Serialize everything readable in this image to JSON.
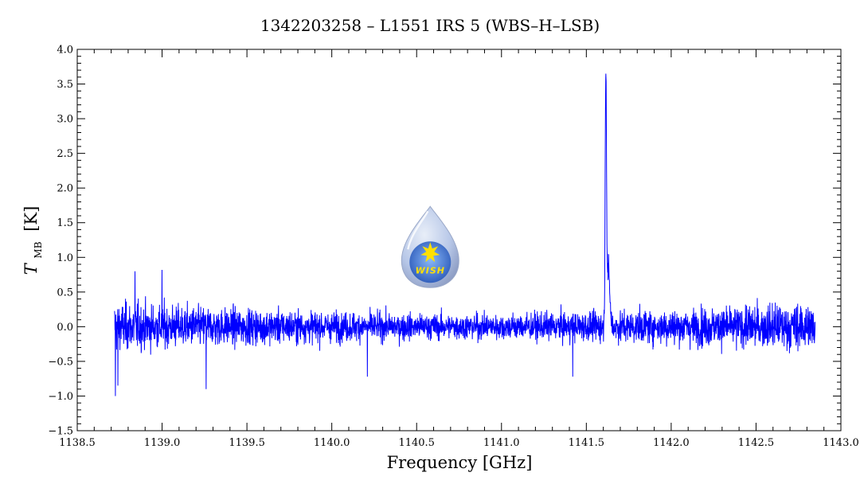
{
  "chart_data": {
    "type": "line",
    "title": "1342203258 – L1551 IRS 5 (WBS–H–LSB)",
    "xlabel": "Frequency [GHz]",
    "ylabel_main": "T",
    "ylabel_sub": "MB",
    "ylabel_unit": "[K]",
    "xlim": [
      1138.5,
      1143.0
    ],
    "ylim": [
      -1.5,
      4.0
    ],
    "x_major_ticks": [
      1138.5,
      1139.0,
      1139.5,
      1140.0,
      1140.5,
      1141.0,
      1141.5,
      1142.0,
      1142.5,
      1143.0
    ],
    "x_tick_labels": [
      "1138.5",
      "1139.0",
      "1139.5",
      "1140.0",
      "1140.5",
      "1141.0",
      "1141.5",
      "1142.0",
      "1142.5",
      "1143.0"
    ],
    "y_major_ticks": [
      -1.5,
      -1.0,
      -0.5,
      0.0,
      0.5,
      1.0,
      1.5,
      2.0,
      2.5,
      3.0,
      3.5,
      4.0
    ],
    "y_tick_labels": [
      "−1.5",
      "−1.0",
      "−0.5",
      "0.0",
      "0.5",
      "1.0",
      "1.5",
      "2.0",
      "2.5",
      "3.0",
      "3.5",
      "4.0"
    ],
    "grid": false,
    "series": [
      {
        "color": "#0000ff",
        "x_start": 1138.72,
        "x_end": 1142.85,
        "baseline": 0.0,
        "noise_rms_edges": 0.17,
        "noise_rms_center": 0.09,
        "peaks": [
          {
            "x": 1141.615,
            "y": 3.65
          },
          {
            "x": 1141.63,
            "y": 0.8
          }
        ],
        "notable_points": [
          {
            "x": 1138.725,
            "y": -1.0
          },
          {
            "x": 1138.74,
            "y": -0.85
          },
          {
            "x": 1139.0,
            "y": 0.82
          },
          {
            "x": 1138.84,
            "y": 0.8
          },
          {
            "x": 1139.26,
            "y": -0.9
          },
          {
            "x": 1140.21,
            "y": -0.72
          },
          {
            "x": 1141.42,
            "y": -0.72
          }
        ]
      }
    ],
    "logo": {
      "text": "WISH",
      "x": 1140.58,
      "y": 1.0,
      "colors": {
        "drop": "#b8c8e8",
        "core": "#4a78d0",
        "star": "#ffe000"
      }
    }
  }
}
